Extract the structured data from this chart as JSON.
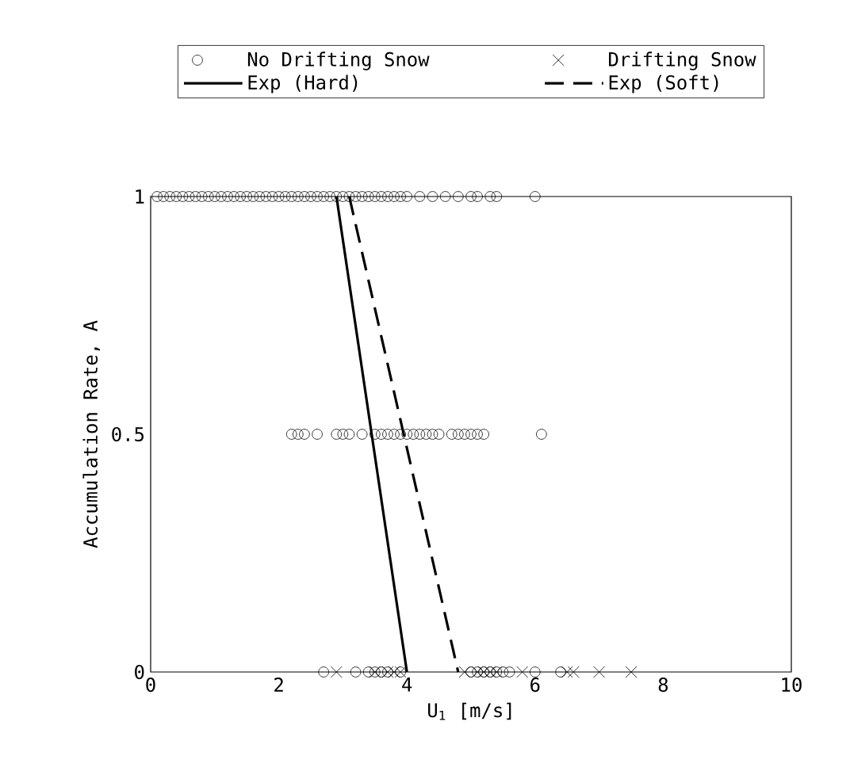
{
  "chart_data": {
    "type": "scatter",
    "xlabel": "U$_{1}$ [m/s]",
    "ylabel": "Accumulation Rate, A",
    "xlim": [
      0,
      10
    ],
    "xticks": [
      0,
      2,
      4,
      6,
      8,
      10
    ],
    "ylim": [
      0,
      1
    ],
    "yticks": [
      0,
      0.5,
      1
    ],
    "grid": false,
    "legend": "top",
    "series": [
      {
        "name": "No Drifting Snow",
        "marker": "circle",
        "color": "#000000",
        "x": [
          0.1,
          0.2,
          0.3,
          0.4,
          0.5,
          0.6,
          0.7,
          0.8,
          0.9,
          1.0,
          1.1,
          1.2,
          1.3,
          1.4,
          1.5,
          1.6,
          1.7,
          1.8,
          1.9,
          2.0,
          2.1,
          2.2,
          2.3,
          2.4,
          2.5,
          2.6,
          2.7,
          2.8,
          2.9,
          3.0,
          3.1,
          3.2,
          3.3,
          3.4,
          3.5,
          3.6,
          3.7,
          3.8,
          3.9,
          4.0,
          4.2,
          4.4,
          4.6,
          4.8,
          5.0,
          5.1,
          5.3,
          5.4,
          6.0,
          2.2,
          2.3,
          2.4,
          2.6,
          2.9,
          3.0,
          3.1,
          3.3,
          3.5,
          3.6,
          3.7,
          3.8,
          3.9,
          4.0,
          4.1,
          4.2,
          4.3,
          4.4,
          4.5,
          4.7,
          4.8,
          4.9,
          5.0,
          5.1,
          5.2,
          6.1,
          2.7,
          3.2,
          3.4,
          3.5,
          3.6,
          3.7,
          3.9,
          5.0,
          5.1,
          5.2,
          5.3,
          5.4,
          5.5,
          5.6,
          6.0,
          6.4
        ],
        "values": [
          1,
          1,
          1,
          1,
          1,
          1,
          1,
          1,
          1,
          1,
          1,
          1,
          1,
          1,
          1,
          1,
          1,
          1,
          1,
          1,
          1,
          1,
          1,
          1,
          1,
          1,
          1,
          1,
          1,
          1,
          1,
          1,
          1,
          1,
          1,
          1,
          1,
          1,
          1,
          1,
          1,
          1,
          1,
          1,
          1,
          1,
          1,
          1,
          1,
          0.5,
          0.5,
          0.5,
          0.5,
          0.5,
          0.5,
          0.5,
          0.5,
          0.5,
          0.5,
          0.5,
          0.5,
          0.5,
          0.5,
          0.5,
          0.5,
          0.5,
          0.5,
          0.5,
          0.5,
          0.5,
          0.5,
          0.5,
          0.5,
          0.5,
          0.5,
          0,
          0,
          0,
          0,
          0,
          0,
          0,
          0,
          0,
          0,
          0,
          0,
          0,
          0,
          0,
          0
        ]
      },
      {
        "name": "Drifting Snow",
        "marker": "cross",
        "color": "#000000",
        "x": [
          2.9,
          3.5,
          3.7,
          3.8,
          3.9,
          4.9,
          5.1,
          5.2,
          5.3,
          5.4,
          5.8,
          6.5,
          6.6,
          7.0,
          7.5
        ],
        "values": [
          0,
          0,
          0,
          0,
          0,
          0,
          0,
          0,
          0,
          0,
          0,
          0,
          0,
          0,
          0
        ]
      },
      {
        "name": "Exp (Hard)",
        "type": "line",
        "marker": "none",
        "line_style": "solid",
        "color": "#000000",
        "x": [
          2.9,
          4.0
        ],
        "values": [
          1,
          0
        ]
      },
      {
        "name": "Exp (Soft)",
        "type": "line",
        "marker": "none",
        "line_style": "dashed",
        "color": "#000000",
        "x": [
          3.1,
          4.8
        ],
        "values": [
          1,
          0
        ]
      }
    ]
  }
}
